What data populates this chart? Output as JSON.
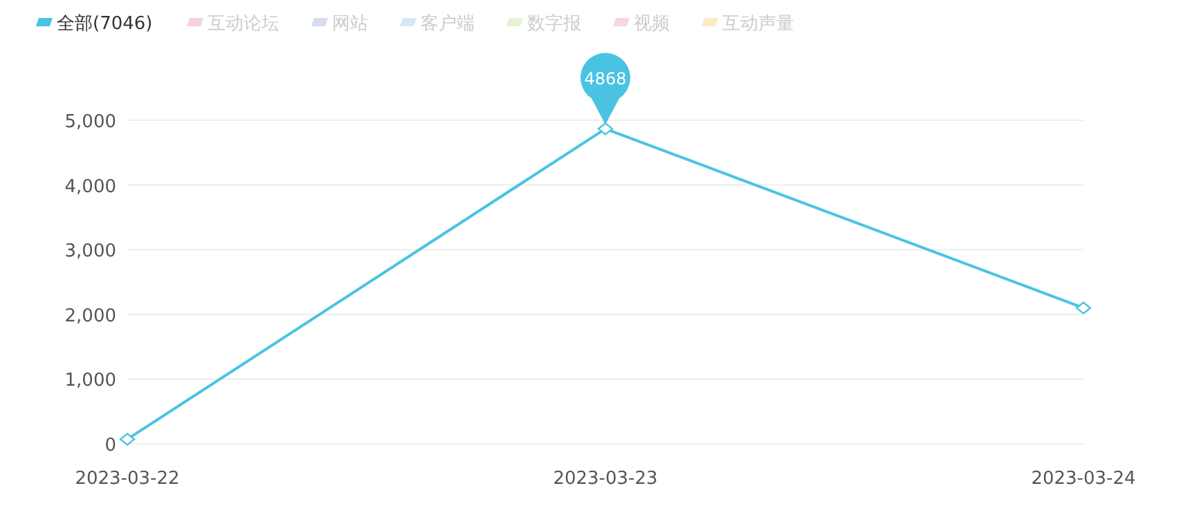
{
  "chart_data": {
    "type": "line",
    "categories": [
      "2023-03-22",
      "2023-03-23",
      "2023-03-24"
    ],
    "series": [
      {
        "name": "全部(7046)",
        "color": "#4ac3e3",
        "values": [
          70,
          4868,
          2100
        ]
      },
      {
        "name": "互动论坛",
        "color": "#f6d3dc",
        "values": [
          null,
          null,
          null
        ]
      },
      {
        "name": "网站",
        "color": "#d6dcf2",
        "values": [
          null,
          null,
          null
        ]
      },
      {
        "name": "客户端",
        "color": "#d9e6f7",
        "values": [
          null,
          null,
          null
        ]
      },
      {
        "name": "数字报",
        "color": "#e4f2d5",
        "values": [
          null,
          null,
          null
        ]
      },
      {
        "name": "视频",
        "color": "#f7d6dc",
        "values": [
          null,
          null,
          null
        ]
      },
      {
        "name": "互动声量",
        "color": "#faeac6",
        "values": [
          null,
          null,
          null
        ]
      }
    ],
    "ylim": [
      0,
      5000
    ],
    "yticks": [
      {
        "value": 0,
        "label": "0"
      },
      {
        "value": 1000,
        "label": "1,000"
      },
      {
        "value": 2000,
        "label": "2,000"
      },
      {
        "value": 3000,
        "label": "3,000"
      },
      {
        "value": 4000,
        "label": "4,000"
      },
      {
        "value": 5000,
        "label": "5,000"
      }
    ],
    "grid": "y",
    "legend": "top left",
    "marker": "diamond",
    "annotations": [
      {
        "text": "4868",
        "x": "2023-03-23",
        "y": 4868
      }
    ]
  }
}
